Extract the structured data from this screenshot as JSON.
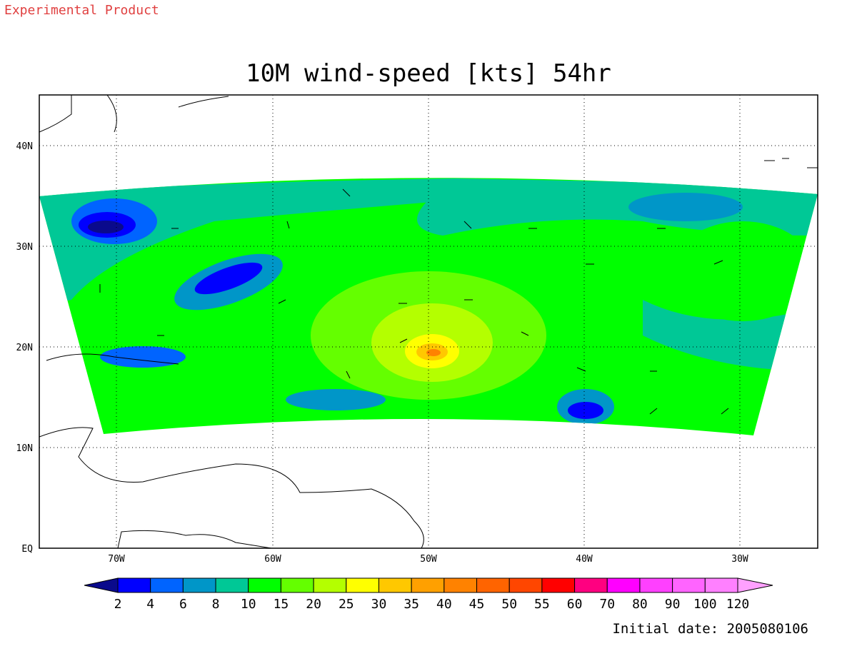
{
  "header": {
    "note": "Experimental Product"
  },
  "title": "10M wind-speed [kts] 54hr",
  "map": {
    "lat_labels": [
      "EQ",
      "10N",
      "20N",
      "30N",
      "40N"
    ],
    "lon_labels": [
      "70W",
      "60W",
      "50W",
      "40W",
      "30W"
    ]
  },
  "colorbar": {
    "labels": [
      2,
      4,
      6,
      8,
      10,
      15,
      20,
      25,
      30,
      35,
      40,
      45,
      50,
      55,
      60,
      70,
      80,
      90,
      100,
      120
    ],
    "colors": [
      "#0a0a8c",
      "#0000ff",
      "#0064ff",
      "#0096c8",
      "#00c896",
      "#00ff00",
      "#64ff00",
      "#b4ff00",
      "#ffff00",
      "#ffc800",
      "#ffa000",
      "#ff8200",
      "#ff6400",
      "#ff4600",
      "#ff0000",
      "#ff0080",
      "#ff00ff",
      "#ff40ff",
      "#ff64ff",
      "#ff80ff",
      "#ffa0ff"
    ]
  },
  "footer": {
    "initial_date": "Initial date: 2005080106"
  }
}
